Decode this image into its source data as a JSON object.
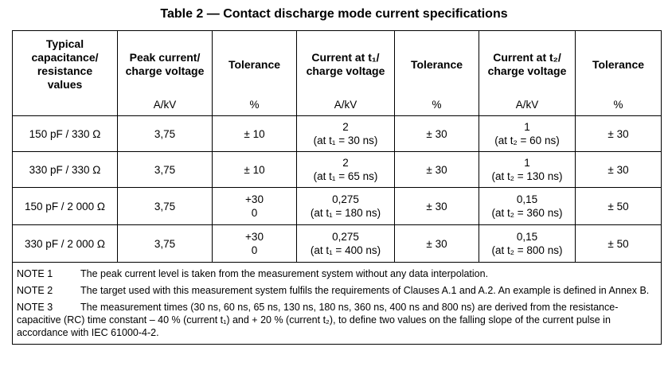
{
  "caption": "Table 2 — Contact discharge mode current specifications",
  "headers": [
    {
      "title_lines": [
        "Typical",
        "capacitance/",
        "resistance",
        "values"
      ],
      "unit": ""
    },
    {
      "title_lines": [
        "Peak current/",
        "charge voltage"
      ],
      "unit": "A/kV"
    },
    {
      "title_lines": [
        "Tolerance"
      ],
      "unit": "%"
    },
    {
      "title_lines": [
        "Current at t₁/",
        "charge voltage"
      ],
      "unit": "A/kV"
    },
    {
      "title_lines": [
        "Tolerance"
      ],
      "unit": "%"
    },
    {
      "title_lines": [
        "Current at t₂/",
        "charge voltage"
      ],
      "unit": "A/kV"
    },
    {
      "title_lines": [
        "Tolerance"
      ],
      "unit": "%"
    }
  ],
  "rows": [
    {
      "values": "150 pF / 330 Ω",
      "peak": "3,75",
      "tol_peak": [
        "± 10"
      ],
      "i1": [
        "2",
        "(at t₁ = 30 ns)"
      ],
      "tol1": "± 30",
      "i2": [
        "1",
        "(at t₂ = 60 ns)"
      ],
      "tol2": "± 30"
    },
    {
      "values": "330 pF / 330 Ω",
      "peak": "3,75",
      "tol_peak": [
        "± 10"
      ],
      "i1": [
        "2",
        "(at t₁ = 65 ns)"
      ],
      "tol1": "± 30",
      "i2": [
        "1",
        "(at t₂ = 130 ns)"
      ],
      "tol2": "± 30"
    },
    {
      "values": "150 pF / 2 000 Ω",
      "peak": "3,75",
      "tol_peak": [
        "+30",
        "0"
      ],
      "i1": [
        "0,275",
        "(at t₁ = 180 ns)"
      ],
      "tol1": "± 30",
      "i2": [
        "0,15",
        "(at t₂ = 360 ns)"
      ],
      "tol2": "± 50"
    },
    {
      "values": "330 pF / 2 000 Ω",
      "peak": "3,75",
      "tol_peak": [
        "+30",
        "0"
      ],
      "i1": [
        "0,275",
        "(at t₁ = 400 ns)"
      ],
      "tol1": "± 30",
      "i2": [
        "0,15",
        "(at t₂ = 800 ns)"
      ],
      "tol2": "± 50"
    }
  ],
  "notes": [
    {
      "label": "NOTE 1",
      "text": "The peak current level is taken from the measurement system without any data interpolation."
    },
    {
      "label": "NOTE 2",
      "text": "The target used with this measurement system fulfils the requirements of Clauses A.1 and A.2. An example is defined in Annex B."
    },
    {
      "label": "NOTE 3",
      "text": "The measurement times (30 ns, 60 ns, 65 ns, 130 ns, 180 ns, 360 ns, 400 ns and 800 ns) are derived from the resistance-capacitive (RC) time constant – 40 % (current t₁) and + 20 % (current t₂), to define two values on the falling slope of the current pulse in accordance with IEC 61000-4-2."
    }
  ]
}
